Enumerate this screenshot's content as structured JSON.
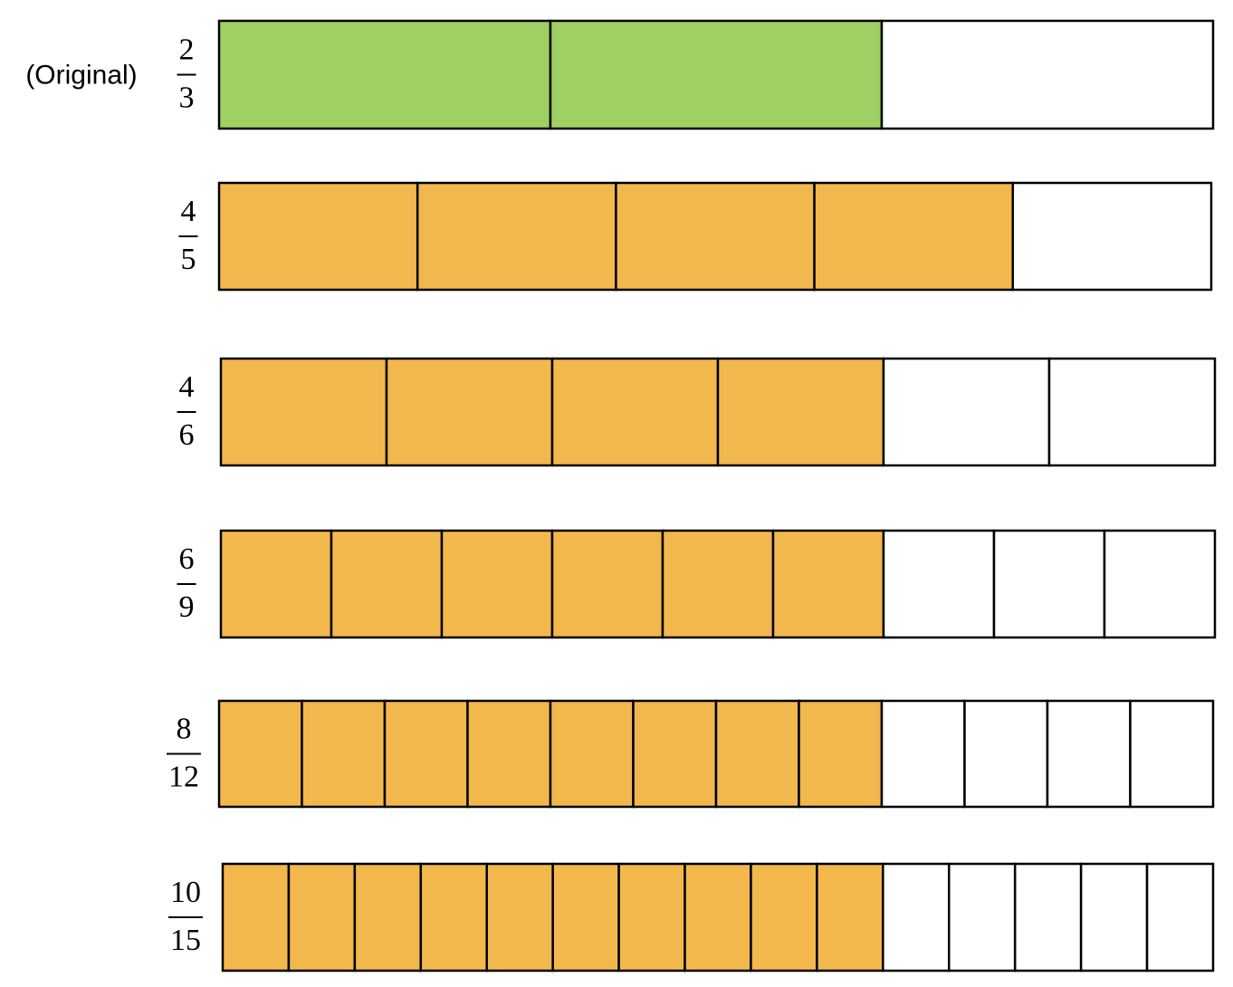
{
  "rows": [
    {
      "label": "(Original)",
      "numerator": 2,
      "denominator": 3,
      "color": "#a0cf63"
    },
    {
      "numerator": 4,
      "denominator": 5,
      "color": "#f2b84e"
    },
    {
      "numerator": 4,
      "denominator": 6,
      "color": "#f2b84e"
    },
    {
      "numerator": 6,
      "denominator": 9,
      "color": "#f2b84e"
    },
    {
      "numerator": 8,
      "denominator": 12,
      "color": "#f2b84e"
    },
    {
      "numerator": 10,
      "denominator": 15,
      "color": "#f2b84e"
    }
  ]
}
